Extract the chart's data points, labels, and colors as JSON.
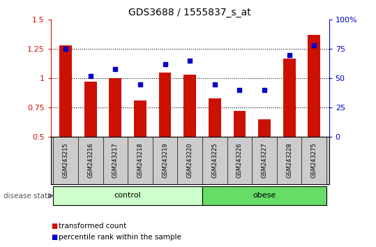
{
  "title": "GDS3688 / 1555837_s_at",
  "samples": [
    "GSM243215",
    "GSM243216",
    "GSM243217",
    "GSM243218",
    "GSM243219",
    "GSM243220",
    "GSM243225",
    "GSM243226",
    "GSM243227",
    "GSM243228",
    "GSM243275"
  ],
  "transformed_count": [
    1.28,
    0.97,
    1.0,
    0.81,
    1.05,
    1.03,
    0.83,
    0.72,
    0.65,
    1.17,
    1.37
  ],
  "percentile_rank": [
    75,
    52,
    58,
    45,
    62,
    65,
    45,
    40,
    40,
    70,
    78
  ],
  "bar_color": "#cc1100",
  "dot_color": "#0000cc",
  "ylim_left": [
    0.5,
    1.5
  ],
  "ylim_right": [
    0,
    100
  ],
  "yticks_left": [
    0.5,
    0.75,
    1.0,
    1.25,
    1.5
  ],
  "ytick_labels_left": [
    "0.5",
    "0.75",
    "1",
    "1.25",
    "1.5"
  ],
  "yticks_right": [
    0,
    25,
    50,
    75,
    100
  ],
  "ytick_labels_right": [
    "0",
    "25",
    "50",
    "75",
    "100%"
  ],
  "dotted_lines": [
    0.75,
    1.0,
    1.25
  ],
  "control_count": 6,
  "obese_count": 5,
  "control_label": "control",
  "obese_label": "obese",
  "disease_state_label": "disease state",
  "legend_bar_label": "transformed count",
  "legend_dot_label": "percentile rank within the sample",
  "control_color": "#ccffcc",
  "obese_color": "#66dd66",
  "tick_area_color": "#cccccc",
  "bar_bottom": 0.5
}
